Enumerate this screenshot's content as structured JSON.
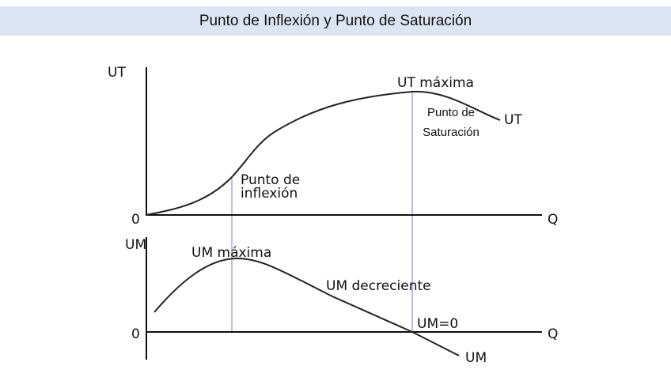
{
  "header": {
    "title": "Punto de Inflexión y Punto de Saturación"
  },
  "top_panel": {
    "y_axis_label": "UT",
    "origin_label": "0",
    "x_axis_label": "Q",
    "curve_label": "UT",
    "max_label": "UT máxima",
    "saturation_label": [
      "Punto de",
      "Saturación"
    ],
    "inflection_label": [
      "Punto de",
      "inflexión"
    ]
  },
  "bottom_panel": {
    "y_axis_label": "UM",
    "origin_label": "0",
    "x_axis_label": "Q",
    "curve_label": "UM",
    "max_label": "UM máxima",
    "decreasing_label": "UM decreciente",
    "zero_label": "UM=0"
  }
}
